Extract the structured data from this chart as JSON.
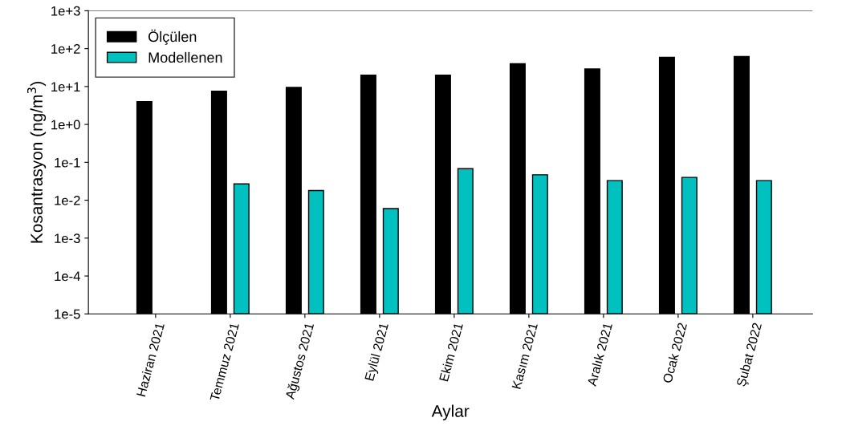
{
  "chart_data": {
    "type": "bar",
    "xlabel": "Aylar",
    "ylabel": "Kosantrasyon (ng/m$^{3}$)",
    "categories": [
      "Haziran 2021",
      "Temmuz 2021",
      "Ağustos 2021",
      "Eylül 2021",
      "Ekim 2021",
      "Kasım 2021",
      "Aralık 2021",
      "Ocak 2022",
      "Şubat 2022"
    ],
    "series": [
      {
        "name": "Ölçülen",
        "color": "#000000",
        "values": [
          4.0,
          7.5,
          9.5,
          20,
          20,
          40,
          29,
          59,
          62
        ]
      },
      {
        "name": "Modellenen",
        "color": "#00c0c0",
        "values": [
          null,
          0.027,
          0.018,
          0.006,
          0.068,
          0.047,
          0.033,
          0.04,
          0.033
        ]
      }
    ],
    "log": true,
    "ylim": [
      1e-05,
      1000
    ],
    "yticks": [
      {
        "value": 1e-05,
        "label": "1e-5"
      },
      {
        "value": 0.0001,
        "label": "1e-4"
      },
      {
        "value": 0.001,
        "label": "1e-3"
      },
      {
        "value": 0.01,
        "label": "1e-2"
      },
      {
        "value": 0.1,
        "label": "1e-1"
      },
      {
        "value": 1,
        "label": "1e+0"
      },
      {
        "value": 10,
        "label": "1e+1"
      },
      {
        "value": 100,
        "label": "1e+2"
      },
      {
        "value": 1000,
        "label": "1e+3"
      }
    ],
    "grid": false,
    "legend": "top left"
  }
}
